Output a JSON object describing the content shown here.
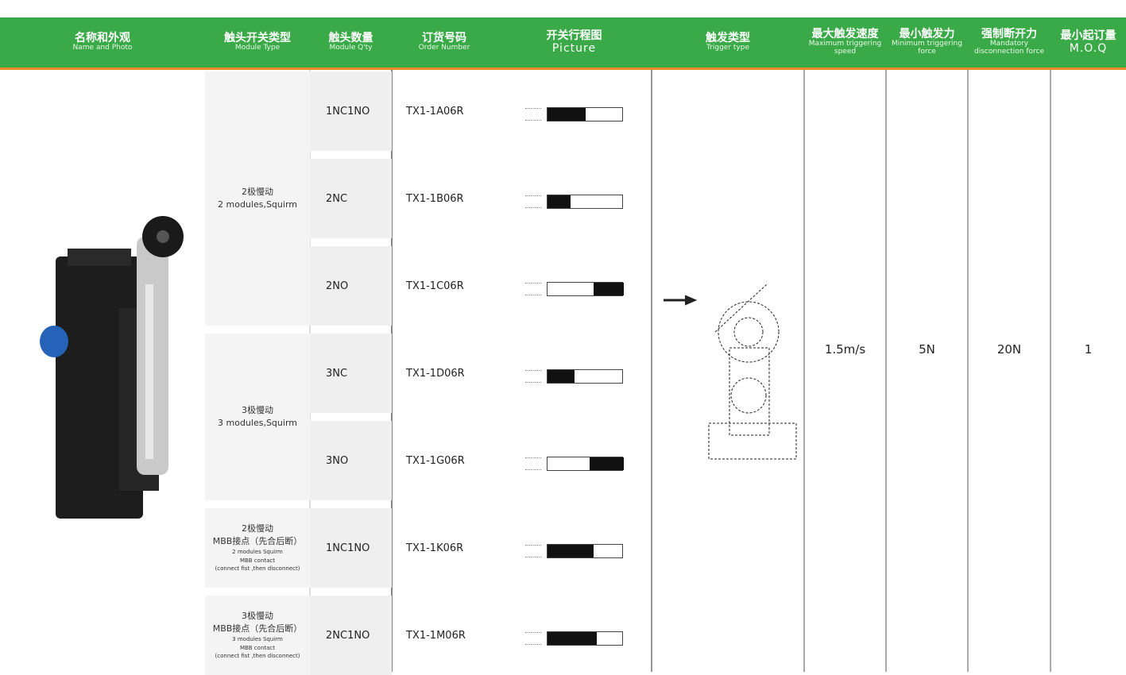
{
  "header": {
    "columns": [
      {
        "zh": "名称和外观",
        "en": "Name and Photo"
      },
      {
        "zh": "触头开关类型",
        "en": "Module Type"
      },
      {
        "zh": "触头数量",
        "en": "Module Q'ty"
      },
      {
        "zh": "订货号码",
        "en": "Order Number"
      },
      {
        "zh": "开关行程图",
        "en": "Picture"
      },
      {
        "zh": "触发类型",
        "en": "Trigger type"
      },
      {
        "zh": "最大触发速度",
        "en": "Maximum triggering speed"
      },
      {
        "zh": "最小触发力",
        "en": "Minimum triggering force"
      },
      {
        "zh": "强制断开力",
        "en": "Mandatory disconnection force"
      },
      {
        "zh": "最小起订量",
        "en": "M.O.Q"
      }
    ]
  },
  "groups": [
    {
      "lines": [
        "2极慢动",
        "2 modules,Squirm"
      ]
    },
    {
      "lines": [
        "3极慢动",
        "3 modules,Squirm"
      ]
    },
    {
      "lines": [
        "2极慢动",
        "MBB接点（先合后断）",
        "2 modules Squirm",
        "MBB contact",
        "(connect fist ,then disconnect)"
      ]
    },
    {
      "lines": [
        "3极慢动",
        "MBB接点（先合后断）",
        "3 modules Squirm",
        "MBB contact",
        "(connect fist ,then disconnect)"
      ]
    }
  ],
  "rows": [
    {
      "quantity": "1NC1NO",
      "order_number": "TX1-1A06R"
    },
    {
      "quantity": "2NC",
      "order_number": "TX1-1B06R"
    },
    {
      "quantity": "2NO",
      "order_number": "TX1-1C06R"
    },
    {
      "quantity": "3NC",
      "order_number": "TX1-1D06R"
    },
    {
      "quantity": "3NO",
      "order_number": "TX1-1G06R"
    },
    {
      "quantity": "1NC1NO",
      "order_number": "TX1-1K06R"
    },
    {
      "quantity": "2NC1NO",
      "order_number": "TX1-1M06R"
    }
  ],
  "specs": {
    "max_speed": "1.5m/s",
    "min_force": "5N",
    "disconnect_force": "20N",
    "moq": "1"
  }
}
